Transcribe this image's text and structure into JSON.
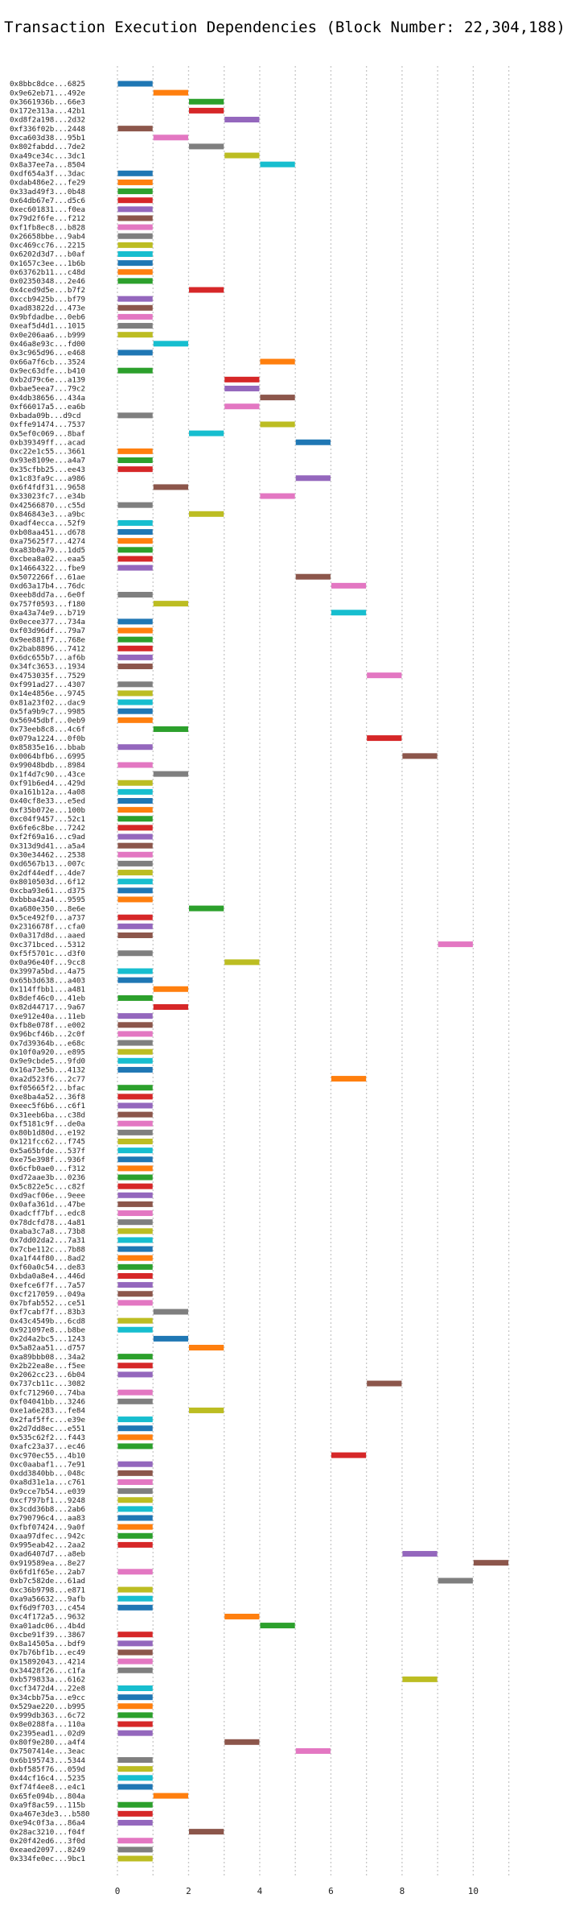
{
  "chart_data": {
    "type": "bar",
    "orientation": "horizontal",
    "title": "Transaction Execution Dependencies (Block Number: 22,304,188)",
    "xlabel": "",
    "ylabel": "",
    "xlim": [
      0,
      11.8
    ],
    "xticks": [
      0,
      2,
      4,
      6,
      8,
      10
    ],
    "grid": "vertical dotted",
    "colors": [
      "#1f77b4",
      "#ff7f0e",
      "#2ca02c",
      "#d62728",
      "#9467bd",
      "#8c564b",
      "#e377c2",
      "#7f7f7f",
      "#bcbd22",
      "#17becf"
    ],
    "series": [
      {
        "values": [
          [
            "0x8bbc8dce...6825",
            0,
            1
          ],
          [
            "0x9e62eb71...492e",
            1,
            2
          ],
          [
            "0x3661936b...66e3",
            2,
            3
          ],
          [
            "0x172e313a...42b1",
            2,
            3
          ],
          [
            "0xd8f2a198...2d32",
            3,
            4
          ],
          [
            "0xf336f02b...2448",
            0,
            1
          ],
          [
            "0xca603d38...95b1",
            1,
            2
          ],
          [
            "0x802fabdd...7de2",
            2,
            3
          ],
          [
            "0xa49ce34c...3dc1",
            3,
            4
          ],
          [
            "0x8a37ee7a...8504",
            4,
            5
          ],
          [
            "0xdf654a3f...3dac",
            0,
            1
          ],
          [
            "0xdab486e2...fe29",
            0,
            1
          ],
          [
            "0x33ad49f3...0b48",
            0,
            1
          ],
          [
            "0x64db67e7...d5c6",
            0,
            1
          ],
          [
            "0xec601831...f0ea",
            0,
            1
          ],
          [
            "0x79d2f6fe...f212",
            0,
            1
          ],
          [
            "0xf1fb8ec8...b828",
            0,
            1
          ],
          [
            "0x26658bbe...9ab4",
            0,
            1
          ],
          [
            "0xc469cc76...2215",
            0,
            1
          ],
          [
            "0x6202d3d7...b0af",
            0,
            1
          ],
          [
            "0x1657c3ee...1b6b",
            0,
            1
          ],
          [
            "0x63762b11...c48d",
            0,
            1
          ],
          [
            "0x02350348...2e46",
            0,
            1
          ],
          [
            "0x4ced9d5e...b7f2",
            2,
            3
          ],
          [
            "0xccb9425b...bf79",
            0,
            1
          ],
          [
            "0xad83822d...473e",
            0,
            1
          ],
          [
            "0x9bfdadbe...0eb6",
            0,
            1
          ],
          [
            "0xeaf5d4d1...1015",
            0,
            1
          ],
          [
            "0x0e206aa6...b999",
            0,
            1
          ],
          [
            "0x46a8e93c...fd00",
            1,
            2
          ],
          [
            "0x3c965d96...e468",
            0,
            1
          ],
          [
            "0x66a7f6cb...3524",
            4,
            5
          ],
          [
            "0x9ec63dfe...b410",
            0,
            1
          ],
          [
            "0xb2d79c6e...a139",
            3,
            4
          ],
          [
            "0xbae5eea7...79c2",
            3,
            4
          ],
          [
            "0x4db38656...434a",
            4,
            5
          ],
          [
            "0xf66017a5...ea6b",
            3,
            4
          ],
          [
            "0xbada09b...d9cd",
            0,
            1
          ],
          [
            "0xffe91474...7537",
            4,
            5
          ],
          [
            "0x5ef0c069...8baf",
            2,
            3
          ],
          [
            "0xb39349ff...acad",
            5,
            6
          ],
          [
            "0xc22e1c55...3661",
            0,
            1
          ],
          [
            "0x93e8109e...a4a7",
            0,
            1
          ],
          [
            "0x35cfbb25...ee43",
            0,
            1
          ],
          [
            "0x1c83fa9c...a986",
            5,
            6
          ],
          [
            "0x6f4fdf31...9658",
            1,
            2
          ],
          [
            "0x33023fc7...e34b",
            4,
            5
          ],
          [
            "0x42566870...c55d",
            0,
            1
          ],
          [
            "0x846843e3...a9bc",
            2,
            3
          ],
          [
            "0xadf4ecca...52f9",
            0,
            1
          ],
          [
            "0xb08aa451...d678",
            0,
            1
          ],
          [
            "0xa75625f7...4274",
            0,
            1
          ],
          [
            "0xa83b0a79...1dd5",
            0,
            1
          ],
          [
            "0xcbea8a02...eaa5",
            0,
            1
          ],
          [
            "0x14664322...fbe9",
            0,
            1
          ],
          [
            "0x5072266f...61ae",
            5,
            6
          ],
          [
            "0xd63a17b4...76dc",
            6,
            7
          ],
          [
            "0xeeb8dd7a...6e0f",
            0,
            1
          ],
          [
            "0x757f0593...f180",
            1,
            2
          ],
          [
            "0xa43a74e9...b719",
            6,
            7
          ],
          [
            "0x0ecee377...734a",
            0,
            1
          ],
          [
            "0xf03d96df...79a7",
            0,
            1
          ],
          [
            "0x9ee881f7...768e",
            0,
            1
          ],
          [
            "0x2bab8896...7412",
            0,
            1
          ],
          [
            "0x6dc655b7...af6b",
            0,
            1
          ],
          [
            "0x34fc3653...1934",
            0,
            1
          ],
          [
            "0x4753035f...7529",
            7,
            8
          ],
          [
            "0xf991ad27...4307",
            0,
            1
          ],
          [
            "0x14e4856e...9745",
            0,
            1
          ],
          [
            "0x81a23f02...dac9",
            0,
            1
          ],
          [
            "0x5fa9b9c7...9985",
            0,
            1
          ],
          [
            "0x56945dbf...0eb9",
            0,
            1
          ],
          [
            "0x73eeb8c8...4c6f",
            1,
            2
          ],
          [
            "0x079a1224...0f0b",
            7,
            8
          ],
          [
            "0x85835e16...bbab",
            0,
            1
          ],
          [
            "0x0064bfb6...6995",
            8,
            9
          ],
          [
            "0x99048bdb...8984",
            0,
            1
          ],
          [
            "0x1f4d7c90...43ce",
            1,
            2
          ],
          [
            "0xf91b6ed4...429d",
            0,
            1
          ],
          [
            "0xa161b12a...4a08",
            0,
            1
          ],
          [
            "0x40cf8e33...e5ed",
            0,
            1
          ],
          [
            "0xf35b072e...100b",
            0,
            1
          ],
          [
            "0xc04f9457...52c1",
            0,
            1
          ],
          [
            "0x6fe6c8be...7242",
            0,
            1
          ],
          [
            "0xf2f69a16...c9ad",
            0,
            1
          ],
          [
            "0x313d9d41...a5a4",
            0,
            1
          ],
          [
            "0x30e34462...2538",
            0,
            1
          ],
          [
            "0xd6567b13...007c",
            0,
            1
          ],
          [
            "0x2df44edf...4de7",
            0,
            1
          ],
          [
            "0x8010503d...6f12",
            0,
            1
          ],
          [
            "0xcba93e61...d375",
            0,
            1
          ],
          [
            "0xbbba42a4...9595",
            0,
            1
          ],
          [
            "0xa680e350...8e6e",
            2,
            3
          ],
          [
            "0x5ce492f0...a737",
            0,
            1
          ],
          [
            "0x2316678f...cfa0",
            0,
            1
          ],
          [
            "0x0a317d8d...aaed",
            0,
            1
          ],
          [
            "0xc371bced...5312",
            9,
            10
          ],
          [
            "0xf5f5701c...d3f0",
            0,
            1
          ],
          [
            "0x0a96e40f...9cc8",
            3,
            4
          ],
          [
            "0x3997a5bd...4a75",
            0,
            1
          ],
          [
            "0x65b3d638...a403",
            0,
            1
          ],
          [
            "0x114ffbb1...a481",
            1,
            2
          ],
          [
            "0x8def46c0...41eb",
            0,
            1
          ],
          [
            "0x82d44717...9a67",
            1,
            2
          ],
          [
            "0xe912e40a...11eb",
            0,
            1
          ],
          [
            "0xfb8e078f...e002",
            0,
            1
          ],
          [
            "0x96bcf46b...2c0f",
            0,
            1
          ],
          [
            "0x7d39364b...e68c",
            0,
            1
          ],
          [
            "0x10f0a920...e895",
            0,
            1
          ],
          [
            "0x9e9cbde5...9fd0",
            0,
            1
          ],
          [
            "0x16a73e5b...4132",
            0,
            1
          ],
          [
            "0xa2d523f6...2c77",
            6,
            7
          ],
          [
            "0xf05665f2...bfac",
            0,
            1
          ],
          [
            "0xe8ba4a52...36f8",
            0,
            1
          ],
          [
            "0xeec5f6b6...c6f1",
            0,
            1
          ],
          [
            "0x31eeb6ba...c38d",
            0,
            1
          ],
          [
            "0xf5181c9f...de0a",
            0,
            1
          ],
          [
            "0x80b1d80d...e192",
            0,
            1
          ],
          [
            "0x121fcc62...f745",
            0,
            1
          ],
          [
            "0x5a65bfde...537f",
            0,
            1
          ],
          [
            "0xe75e398f...936f",
            0,
            1
          ],
          [
            "0x6cfb0ae0...f312",
            0,
            1
          ],
          [
            "0xd72aae3b...0236",
            0,
            1
          ],
          [
            "0x5c822e5c...c82f",
            0,
            1
          ],
          [
            "0xd9acf06e...9eee",
            0,
            1
          ],
          [
            "0x0afa361d...47be",
            0,
            1
          ],
          [
            "0xadcff7bf...edc8",
            0,
            1
          ],
          [
            "0x78dcfd78...4a81",
            0,
            1
          ],
          [
            "0xaba3c7a8...73b8",
            0,
            1
          ],
          [
            "0x7dd02da2...7a31",
            0,
            1
          ],
          [
            "0x7cbe112c...7b88",
            0,
            1
          ],
          [
            "0xa1f44f80...8ad2",
            0,
            1
          ],
          [
            "0xf60a0c54...de83",
            0,
            1
          ],
          [
            "0xbda0a8e4...446d",
            0,
            1
          ],
          [
            "0xefce6f7f...7a57",
            0,
            1
          ],
          [
            "0xcf217059...049a",
            0,
            1
          ],
          [
            "0x7bfab552...ce51",
            0,
            1
          ],
          [
            "0xf7cabf7f...83b3",
            1,
            2
          ],
          [
            "0x43c4549b...6cd8",
            0,
            1
          ],
          [
            "0x921097e8...b8be",
            0,
            1
          ],
          [
            "0x2d4a2bc5...1243",
            1,
            2
          ],
          [
            "0x5a82aa51...d757",
            2,
            3
          ],
          [
            "0xa89bbb08...34a2",
            0,
            1
          ],
          [
            "0x2b22ea8e...f5ee",
            0,
            1
          ],
          [
            "0x2062cc23...6b04",
            0,
            1
          ],
          [
            "0x737cb11c...3082",
            7,
            8
          ],
          [
            "0xfc712960...74ba",
            0,
            1
          ],
          [
            "0xf04041bb...3246",
            0,
            1
          ],
          [
            "0xe1a6e283...fe84",
            2,
            3
          ],
          [
            "0x2faf5ffc...e39e",
            0,
            1
          ],
          [
            "0x2d7dd8ec...e551",
            0,
            1
          ],
          [
            "0x535c62f2...f443",
            0,
            1
          ],
          [
            "0xafc23a37...ec46",
            0,
            1
          ],
          [
            "0xc970ec55...4b10",
            6,
            7
          ],
          [
            "0xc0aabaf1...7e91",
            0,
            1
          ],
          [
            "0xdd3840bb...048c",
            0,
            1
          ],
          [
            "0xa8d31e1a...c761",
            0,
            1
          ],
          [
            "0x9cce7b54...e039",
            0,
            1
          ],
          [
            "0xcf797bf1...9248",
            0,
            1
          ],
          [
            "0x3cdd36b8...2ab6",
            0,
            1
          ],
          [
            "0x790796c4...aa83",
            0,
            1
          ],
          [
            "0xfbf07424...9a0f",
            0,
            1
          ],
          [
            "0xaa97dfec...942c",
            0,
            1
          ],
          [
            "0x995eab42...2aa2",
            0,
            1
          ],
          [
            "0xad6407d7...a8eb",
            8,
            9
          ],
          [
            "0x919589ea...8e27",
            10,
            11
          ],
          [
            "0x6fd1f65e...2ab7",
            0,
            1
          ],
          [
            "0xb7c582de...61ad",
            9,
            10
          ],
          [
            "0xc36b9798...e871",
            0,
            1
          ],
          [
            "0xa9a56632...9afb",
            0,
            1
          ],
          [
            "0xf6d9f703...c454",
            0,
            1
          ],
          [
            "0xc4f172a5...9632",
            3,
            4
          ],
          [
            "0xa01adc06...4b4d",
            4,
            5
          ],
          [
            "0xcbe91f39...3867",
            0,
            1
          ],
          [
            "0x8a14505a...bdf9",
            0,
            1
          ],
          [
            "0x7b76bf1b...ec49",
            0,
            1
          ],
          [
            "0x15892043...4214",
            0,
            1
          ],
          [
            "0x34428f26...c1fa",
            0,
            1
          ],
          [
            "0xb579833a...6162",
            8,
            9
          ],
          [
            "0xcf3472d4...22e8",
            0,
            1
          ],
          [
            "0x34cbb75a...e9cc",
            0,
            1
          ],
          [
            "0x529ae220...b995",
            0,
            1
          ],
          [
            "0x999db363...6c72",
            0,
            1
          ],
          [
            "0x8e0288fa...110a",
            0,
            1
          ],
          [
            "0x2395ead1...02d9",
            0,
            1
          ],
          [
            "0x80f9e280...a4f4",
            3,
            4
          ],
          [
            "0x7507414e...3eac",
            5,
            6
          ],
          [
            "0x6b195743...5344",
            0,
            1
          ],
          [
            "0xbf585f76...059d",
            0,
            1
          ],
          [
            "0x44cf16c4...5235",
            0,
            1
          ],
          [
            "0xf74f4ee8...e4c1",
            0,
            1
          ],
          [
            "0x65fe094b...804a",
            1,
            2
          ],
          [
            "0xa9f8ac59...115b",
            0,
            1
          ],
          [
            "0xa467e3de3...b580",
            0,
            1
          ],
          [
            "0xe94c0f3a...86a4",
            0,
            1
          ],
          [
            "0x28ac3210...f04f",
            2,
            3
          ],
          [
            "0x20f42ed6...3f0d",
            0,
            1
          ],
          [
            "0xeaed2097...8249",
            0,
            1
          ],
          [
            "0x334fe0ec...9bc1",
            0,
            1
          ]
        ]
      }
    ]
  }
}
